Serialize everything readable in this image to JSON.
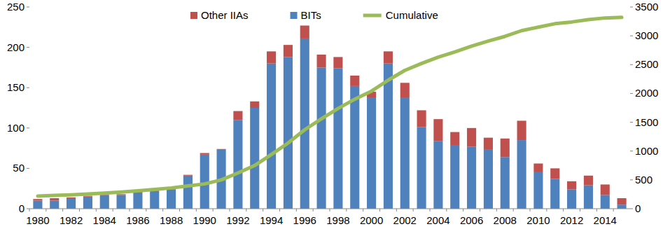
{
  "chart_data": {
    "type": "bar",
    "stacked": true,
    "grid": false,
    "legend": "top",
    "categories": [
      "1980",
      null,
      "1982",
      null,
      "1984",
      null,
      "1986",
      null,
      "1988",
      null,
      "1990",
      null,
      "1992",
      null,
      "1994",
      null,
      "1996",
      null,
      "1998",
      null,
      "2000",
      null,
      "2002",
      null,
      "2004",
      null,
      "2006",
      null,
      "2008",
      null,
      "2010",
      null,
      "2012",
      null,
      "2014",
      null
    ],
    "ylim": [
      0,
      250
    ],
    "yticks": [
      0,
      50,
      100,
      150,
      200,
      250
    ],
    "y2lim": [
      0,
      3500
    ],
    "y2ticks": [
      0,
      500,
      1000,
      1500,
      2000,
      2500,
      3000,
      3500
    ],
    "series": [
      {
        "name": "Other IIAs",
        "type": "bar",
        "color": "#c0504d",
        "values": [
          2,
          3,
          1,
          1,
          1,
          1,
          1,
          1,
          1,
          1,
          2,
          1,
          11,
          8,
          15,
          15,
          16,
          16,
          14,
          13,
          7,
          15,
          18,
          21,
          27,
          16,
          23,
          15,
          23,
          24,
          10,
          13,
          10,
          12,
          13,
          8
        ]
      },
      {
        "name": "BITs",
        "type": "bar",
        "color": "#4f81bd",
        "values": [
          10,
          10,
          13,
          15,
          17,
          17,
          20,
          22,
          24,
          41,
          67,
          73,
          110,
          125,
          180,
          188,
          211,
          175,
          174,
          152,
          138,
          180,
          138,
          101,
          84,
          79,
          77,
          73,
          64,
          85,
          46,
          37,
          24,
          29,
          17,
          5
        ]
      },
      {
        "name": "Cumulative",
        "type": "line",
        "axis": "y2",
        "color": "#9bbb59",
        "values": [
          220,
          230,
          240,
          255,
          270,
          290,
          310,
          335,
          360,
          395,
          430,
          500,
          620,
          750,
          940,
          1140,
          1370,
          1560,
          1740,
          1900,
          2040,
          2230,
          2400,
          2520,
          2630,
          2720,
          2820,
          2910,
          2990,
          3090,
          3150,
          3210,
          3240,
          3280,
          3310,
          3320
        ]
      }
    ]
  }
}
